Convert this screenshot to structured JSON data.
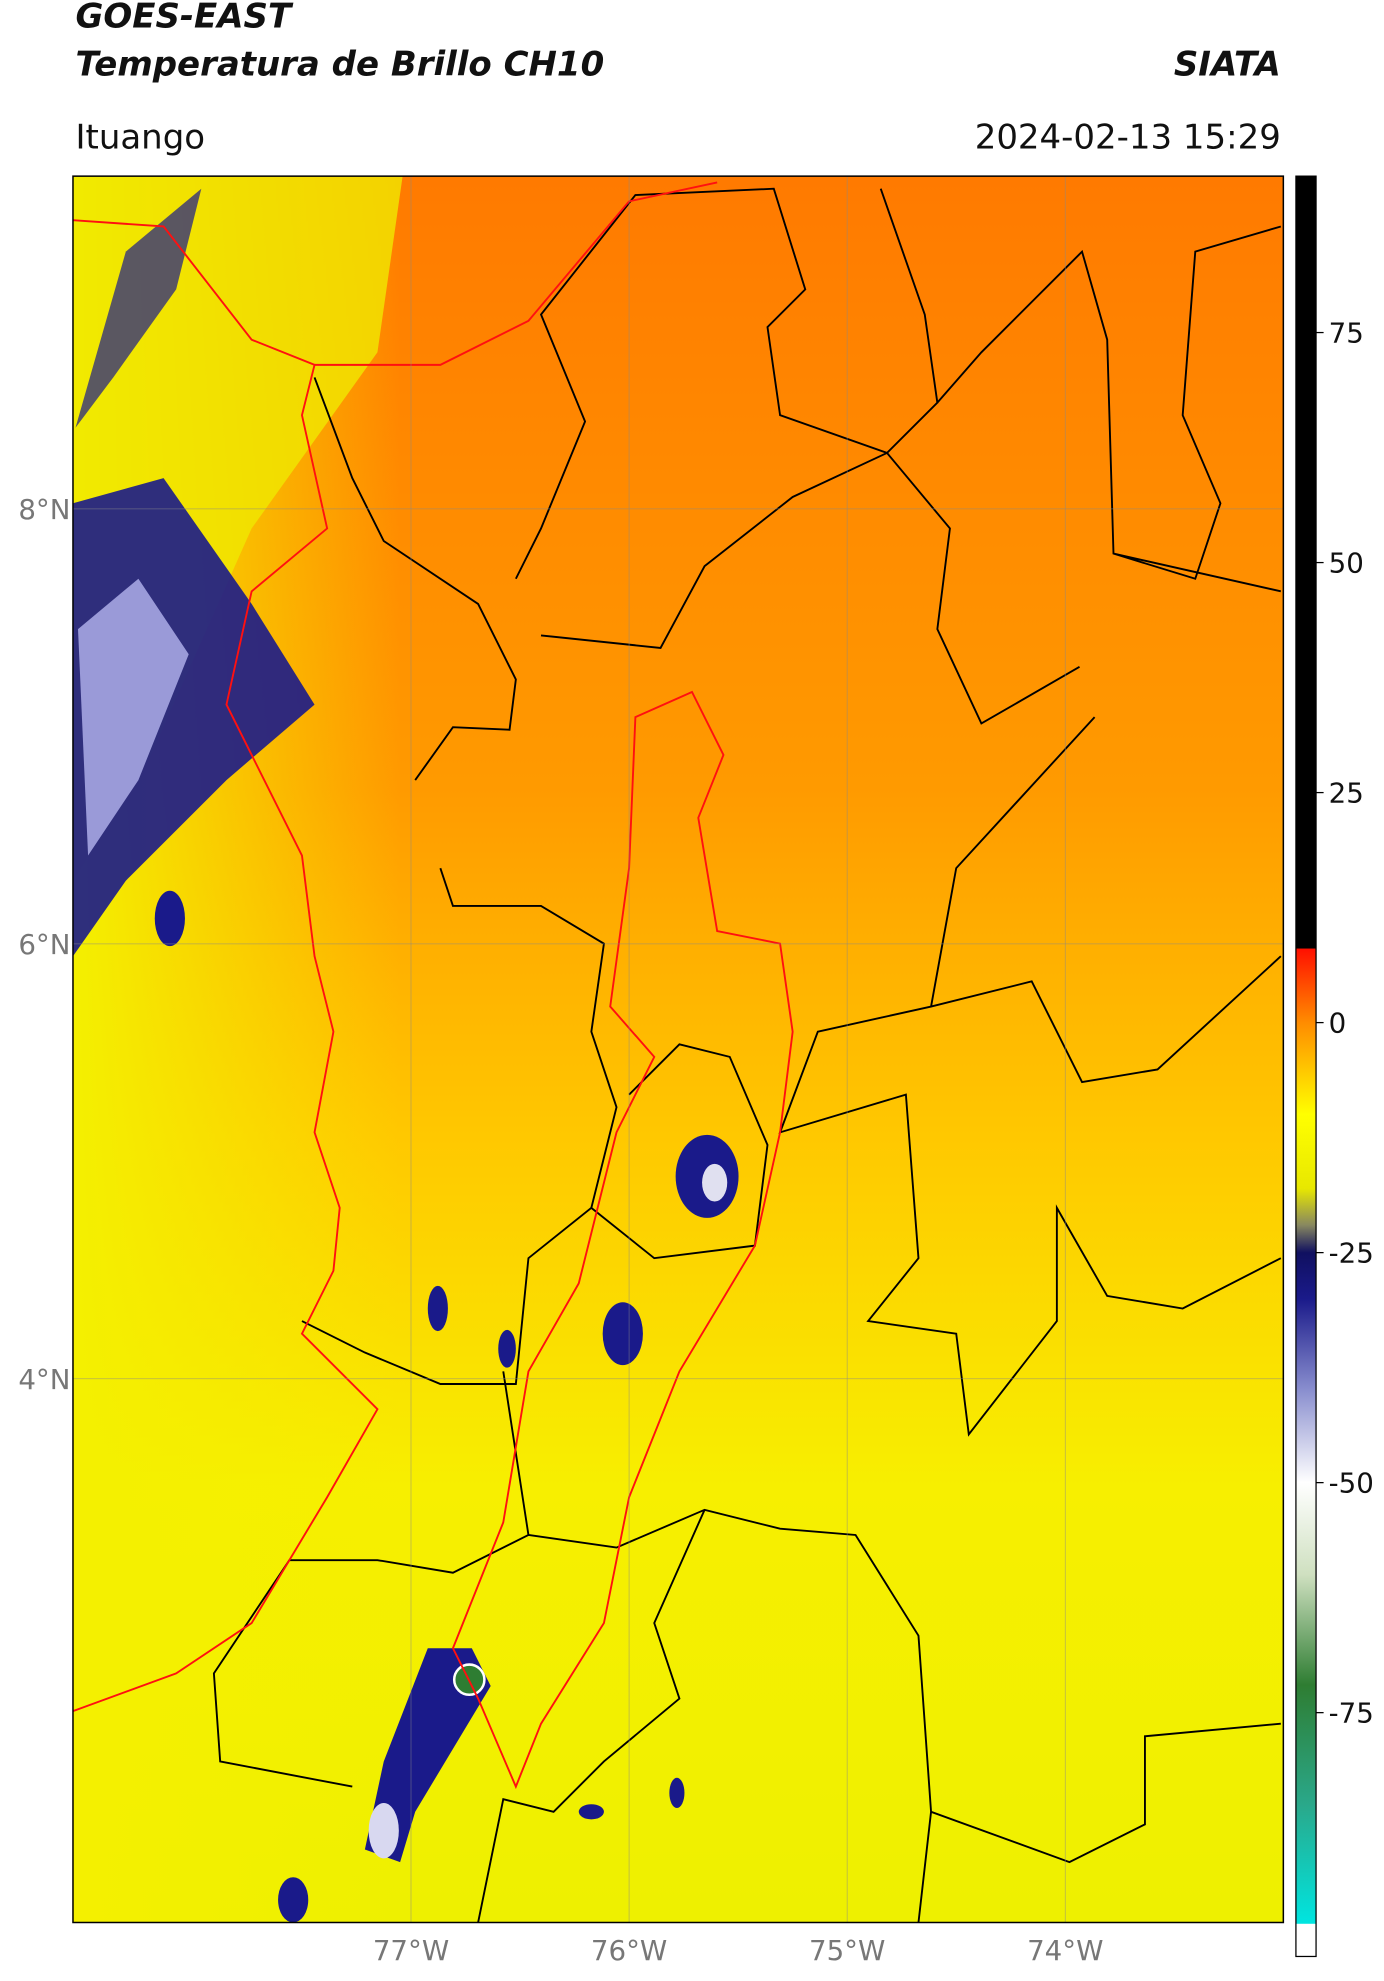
{
  "header": {
    "title": "GOES-EAST",
    "subtitle": "Temperatura de Brillo CH10",
    "source": "SIATA",
    "location": "Ituango",
    "datetime": "2024-02-13 15:29"
  },
  "map": {
    "xlim": [
      -78.55,
      -73.0
    ],
    "ylim": [
      1.5,
      9.53
    ],
    "grid": true,
    "xticks": [
      {
        "value": -77,
        "label": "77°W"
      },
      {
        "value": -76,
        "label": "76°W"
      },
      {
        "value": -75,
        "label": "75°W"
      },
      {
        "value": -74,
        "label": "74°W"
      }
    ],
    "yticks": [
      {
        "value": 4,
        "label": "4°N"
      },
      {
        "value": 6,
        "label": "6°N"
      },
      {
        "value": 8,
        "label": "8°N"
      }
    ]
  },
  "colorbar": {
    "clim": [
      -101.5,
      92
    ],
    "ticks": [
      75,
      50,
      25,
      0,
      -25,
      -50,
      -75
    ],
    "stops": [
      {
        "value": -101.5,
        "color": "#ffffff"
      },
      {
        "value": -98,
        "color": "#ffffff"
      },
      {
        "value": -97.9,
        "color": "#00e5e0"
      },
      {
        "value": -85,
        "color": "#2aa88a"
      },
      {
        "value": -72,
        "color": "#2e7d32"
      },
      {
        "value": -60,
        "color": "#cfe0c0"
      },
      {
        "value": -50,
        "color": "#ffffff"
      },
      {
        "value": -40,
        "color": "#8a8fcf"
      },
      {
        "value": -30,
        "color": "#1a1a8a"
      },
      {
        "value": -25,
        "color": "#101060"
      },
      {
        "value": -22,
        "color": "#888860"
      },
      {
        "value": -18,
        "color": "#e8e800"
      },
      {
        "value": -10,
        "color": "#ffff00"
      },
      {
        "value": 0,
        "color": "#ff8c00"
      },
      {
        "value": 8,
        "color": "#ff1000"
      },
      {
        "value": 8.1,
        "color": "#000000"
      },
      {
        "value": 92,
        "color": "#000000"
      }
    ]
  }
}
